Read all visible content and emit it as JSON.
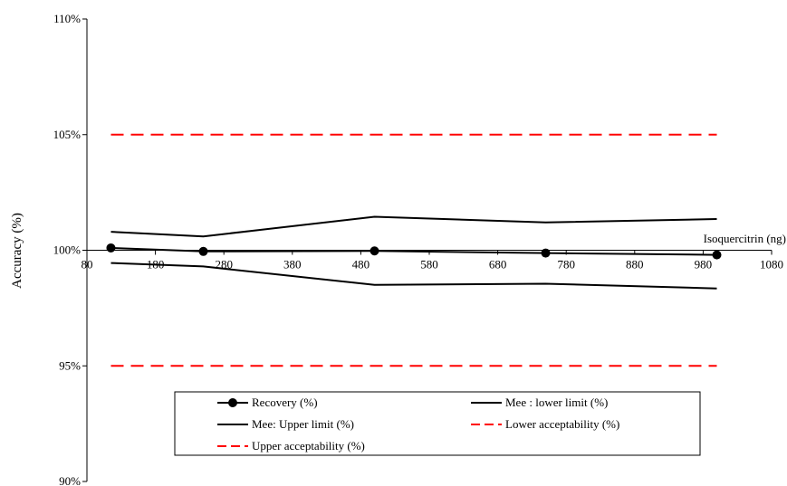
{
  "chart_data": {
    "type": "line",
    "title": "",
    "xlabel": "Isoquercitrin (ng)",
    "ylabel": "Accuracy (%)",
    "xlim": [
      80,
      1080
    ],
    "ylim": [
      90,
      110
    ],
    "x_ticks": [
      80,
      180,
      280,
      380,
      480,
      580,
      680,
      780,
      880,
      980,
      1080
    ],
    "x_tick_labels": [
      "80",
      "180",
      "280",
      "380",
      "480",
      "580",
      "680",
      "780",
      "880",
      "980",
      "1080"
    ],
    "y_ticks": [
      90,
      95,
      100,
      105,
      110
    ],
    "y_tick_labels": [
      "90%",
      "95%",
      "100%",
      "105%",
      "110%"
    ],
    "grid": false,
    "legend_position": "bottom",
    "series": [
      {
        "name": "Recovery (%)",
        "style": "solid-marker",
        "color": "#000000",
        "x": [
          115,
          250,
          500,
          750,
          1000
        ],
        "y": [
          100.1,
          99.95,
          99.97,
          99.88,
          99.8
        ]
      },
      {
        "name": "Mee : lower limit (%)",
        "style": "solid",
        "color": "#000000",
        "x": [
          115,
          250,
          500,
          750,
          1000
        ],
        "y": [
          99.45,
          99.3,
          98.5,
          98.55,
          98.35
        ]
      },
      {
        "name": "Mee: Upper limit (%)",
        "style": "solid",
        "color": "#000000",
        "x": [
          115,
          250,
          500,
          750,
          1000
        ],
        "y": [
          100.8,
          100.6,
          101.45,
          101.2,
          101.35
        ]
      },
      {
        "name": "Lower acceptability (%)",
        "style": "dashed",
        "color": "#ff0000",
        "x": [
          115,
          250,
          500,
          750,
          1000
        ],
        "y": [
          95,
          95,
          95,
          95,
          95
        ]
      },
      {
        "name": "Upper acceptability (%)",
        "style": "dashed",
        "color": "#ff0000",
        "x": [
          115,
          250,
          500,
          750,
          1000
        ],
        "y": [
          105,
          105,
          105,
          105,
          105
        ]
      }
    ]
  }
}
